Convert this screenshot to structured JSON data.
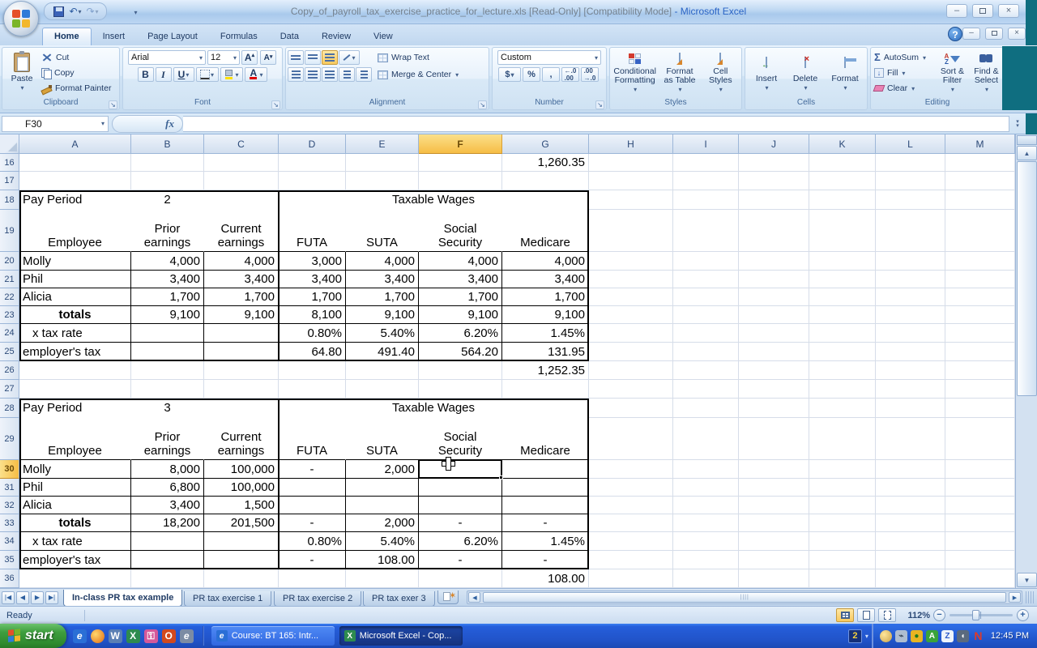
{
  "window": {
    "filename": "Copy_of_payroll_tax_exercise_practice_for_lecture.xls",
    "badges": "[Read-Only]  [Compatibility Mode]",
    "app": "- Microsoft Excel"
  },
  "ribbon": {
    "tabs": [
      "Home",
      "Insert",
      "Page Layout",
      "Formulas",
      "Data",
      "Review",
      "View"
    ],
    "active_tab": "Home",
    "clipboard": {
      "label": "Clipboard",
      "paste": "Paste",
      "cut": "Cut",
      "copy": "Copy",
      "format_painter": "Format Painter"
    },
    "font": {
      "label": "Font",
      "family": "Arial",
      "size": "12",
      "bold": "B",
      "italic": "I",
      "underline": "U"
    },
    "alignment": {
      "label": "Alignment",
      "wrap_text": "Wrap Text",
      "merge_center": "Merge & Center"
    },
    "number": {
      "label": "Number",
      "format": "Custom",
      "currency": "$",
      "percent": "%",
      "comma": ","
    },
    "styles": {
      "label": "Styles",
      "conditional": "Conditional Formatting",
      "format_table": "Format as Table",
      "cell_styles": "Cell Styles"
    },
    "cells": {
      "label": "Cells",
      "insert": "Insert",
      "delete": "Delete",
      "format": "Format"
    },
    "editing": {
      "label": "Editing",
      "autosum": "AutoSum",
      "fill": "Fill",
      "clear": "Clear",
      "sort_filter": "Sort & Filter",
      "find_select": "Find & Select"
    }
  },
  "formula_bar": {
    "name_box": "F30",
    "formula": "",
    "fx": "fx"
  },
  "spreadsheet": {
    "columns": [
      "A",
      "B",
      "C",
      "D",
      "E",
      "F",
      "G",
      "H",
      "I",
      "J",
      "K",
      "L",
      "M"
    ],
    "selected_column": "F",
    "selected_row": "30",
    "selected_cell": "F30",
    "rows": [
      {
        "n": 16,
        "cells": {
          "G": {
            "t": "1,260.35",
            "a": "r"
          }
        }
      },
      {
        "n": 17,
        "cells": {}
      },
      {
        "n": 18,
        "cells": {
          "A": {
            "t": "Pay Period"
          },
          "B": {
            "t": "2",
            "a": "c"
          },
          "DG": {
            "t": "Taxable Wages",
            "a": "c"
          }
        }
      },
      {
        "n": 19,
        "cells": {
          "A": {
            "t": "Employee",
            "a": "c"
          },
          "B": {
            "t": "Prior\nearnings",
            "a": "c",
            "w": true
          },
          "C": {
            "t": "Current\nearnings",
            "a": "c",
            "w": true
          },
          "D": {
            "t": "FUTA",
            "a": "c"
          },
          "E": {
            "t": "SUTA",
            "a": "c"
          },
          "F": {
            "t": "Social\nSecurity",
            "a": "c",
            "w": true
          },
          "G": {
            "t": "Medicare",
            "a": "c"
          }
        }
      },
      {
        "n": 20,
        "cells": {
          "A": {
            "t": "Molly"
          },
          "B": {
            "t": "4,000",
            "a": "r"
          },
          "C": {
            "t": "4,000",
            "a": "r"
          },
          "D": {
            "t": "3,000",
            "a": "r"
          },
          "E": {
            "t": "4,000",
            "a": "r"
          },
          "F": {
            "t": "4,000",
            "a": "r"
          },
          "G": {
            "t": "4,000",
            "a": "r"
          }
        }
      },
      {
        "n": 21,
        "cells": {
          "A": {
            "t": "Phil"
          },
          "B": {
            "t": "3,400",
            "a": "r"
          },
          "C": {
            "t": "3,400",
            "a": "r"
          },
          "D": {
            "t": "3,400",
            "a": "r"
          },
          "E": {
            "t": "3,400",
            "a": "r"
          },
          "F": {
            "t": "3,400",
            "a": "r"
          },
          "G": {
            "t": "3,400",
            "a": "r"
          }
        }
      },
      {
        "n": 22,
        "cells": {
          "A": {
            "t": "Alicia"
          },
          "B": {
            "t": "1,700",
            "a": "r"
          },
          "C": {
            "t": "1,700",
            "a": "r"
          },
          "D": {
            "t": "1,700",
            "a": "r"
          },
          "E": {
            "t": "1,700",
            "a": "r"
          },
          "F": {
            "t": "1,700",
            "a": "r"
          },
          "G": {
            "t": "1,700",
            "a": "r"
          }
        }
      },
      {
        "n": 23,
        "cells": {
          "A": {
            "t": "totals",
            "a": "c",
            "b": true
          },
          "B": {
            "t": "9,100",
            "a": "r"
          },
          "C": {
            "t": "9,100",
            "a": "r"
          },
          "D": {
            "t": "8,100",
            "a": "r"
          },
          "E": {
            "t": "9,100",
            "a": "r"
          },
          "F": {
            "t": "9,100",
            "a": "r"
          },
          "G": {
            "t": "9,100",
            "a": "r"
          }
        }
      },
      {
        "n": 24,
        "cells": {
          "A": {
            "t": "x tax rate",
            "i": true
          },
          "D": {
            "t": "0.80%",
            "a": "r"
          },
          "E": {
            "t": "5.40%",
            "a": "r"
          },
          "F": {
            "t": "6.20%",
            "a": "r"
          },
          "G": {
            "t": "1.45%",
            "a": "r"
          }
        }
      },
      {
        "n": 25,
        "cells": {
          "A": {
            "t": "employer's tax"
          },
          "D": {
            "t": "64.80",
            "a": "r"
          },
          "E": {
            "t": "491.40",
            "a": "r"
          },
          "F": {
            "t": "564.20",
            "a": "r"
          },
          "G": {
            "t": "131.95",
            "a": "r"
          }
        }
      },
      {
        "n": 26,
        "cells": {
          "G": {
            "t": "1,252.35",
            "a": "r"
          }
        }
      },
      {
        "n": 27,
        "cells": {}
      },
      {
        "n": 28,
        "cells": {
          "A": {
            "t": "Pay Period"
          },
          "B": {
            "t": "3",
            "a": "c"
          },
          "DG": {
            "t": "Taxable Wages",
            "a": "c"
          }
        }
      },
      {
        "n": 29,
        "cells": {
          "A": {
            "t": "Employee",
            "a": "c"
          },
          "B": {
            "t": "Prior\nearnings",
            "a": "c",
            "w": true
          },
          "C": {
            "t": "Current\nearnings",
            "a": "c",
            "w": true
          },
          "D": {
            "t": "FUTA",
            "a": "c"
          },
          "E": {
            "t": "SUTA",
            "a": "c"
          },
          "F": {
            "t": "Social\nSecurity",
            "a": "c",
            "w": true
          },
          "G": {
            "t": "Medicare",
            "a": "c"
          }
        }
      },
      {
        "n": 30,
        "cells": {
          "A": {
            "t": "Molly"
          },
          "B": {
            "t": "8,000",
            "a": "r"
          },
          "C": {
            "t": "100,000",
            "a": "r"
          },
          "D": {
            "t": "-",
            "a": "c"
          },
          "E": {
            "t": "2,000",
            "a": "r"
          },
          "F": {
            "t": ""
          }
        }
      },
      {
        "n": 31,
        "cells": {
          "A": {
            "t": "Phil"
          },
          "B": {
            "t": "6,800",
            "a": "r"
          },
          "C": {
            "t": "100,000",
            "a": "r"
          }
        }
      },
      {
        "n": 32,
        "cells": {
          "A": {
            "t": "Alicia"
          },
          "B": {
            "t": "3,400",
            "a": "r"
          },
          "C": {
            "t": "1,500",
            "a": "r"
          }
        }
      },
      {
        "n": 33,
        "cells": {
          "A": {
            "t": "totals",
            "a": "c",
            "b": true
          },
          "B": {
            "t": "18,200",
            "a": "r"
          },
          "C": {
            "t": "201,500",
            "a": "r"
          },
          "D": {
            "t": "-",
            "a": "c"
          },
          "E": {
            "t": "2,000",
            "a": "r"
          },
          "F": {
            "t": "-",
            "a": "c"
          },
          "G": {
            "t": "-",
            "a": "c"
          }
        }
      },
      {
        "n": 34,
        "cells": {
          "A": {
            "t": "x tax rate",
            "i": true
          },
          "D": {
            "t": "0.80%",
            "a": "r"
          },
          "E": {
            "t": "5.40%",
            "a": "r"
          },
          "F": {
            "t": "6.20%",
            "a": "r"
          },
          "G": {
            "t": "1.45%",
            "a": "r"
          }
        }
      },
      {
        "n": 35,
        "cells": {
          "A": {
            "t": "employer's tax"
          },
          "D": {
            "t": "-",
            "a": "c"
          },
          "E": {
            "t": "108.00",
            "a": "r"
          },
          "F": {
            "t": "-",
            "a": "c"
          },
          "G": {
            "t": "-",
            "a": "c"
          }
        }
      },
      {
        "n": 36,
        "cells": {
          "G": {
            "t": "108.00",
            "a": "r"
          }
        }
      }
    ]
  },
  "sheet_tabs": {
    "tabs": [
      "In-class PR tax example",
      "PR tax exercise 1",
      "PR tax exercise 2",
      "PR tax exer 3"
    ],
    "active_index": 0
  },
  "status_bar": {
    "mode": "Ready",
    "zoom": "112%"
  },
  "taskbar": {
    "start": "start",
    "tasks": [
      {
        "label": "Course: BT 165: Intr...",
        "active": false
      },
      {
        "label": "Microsoft Excel - Cop...",
        "active": true
      }
    ],
    "badge": "2",
    "clock": "12:45 PM"
  }
}
